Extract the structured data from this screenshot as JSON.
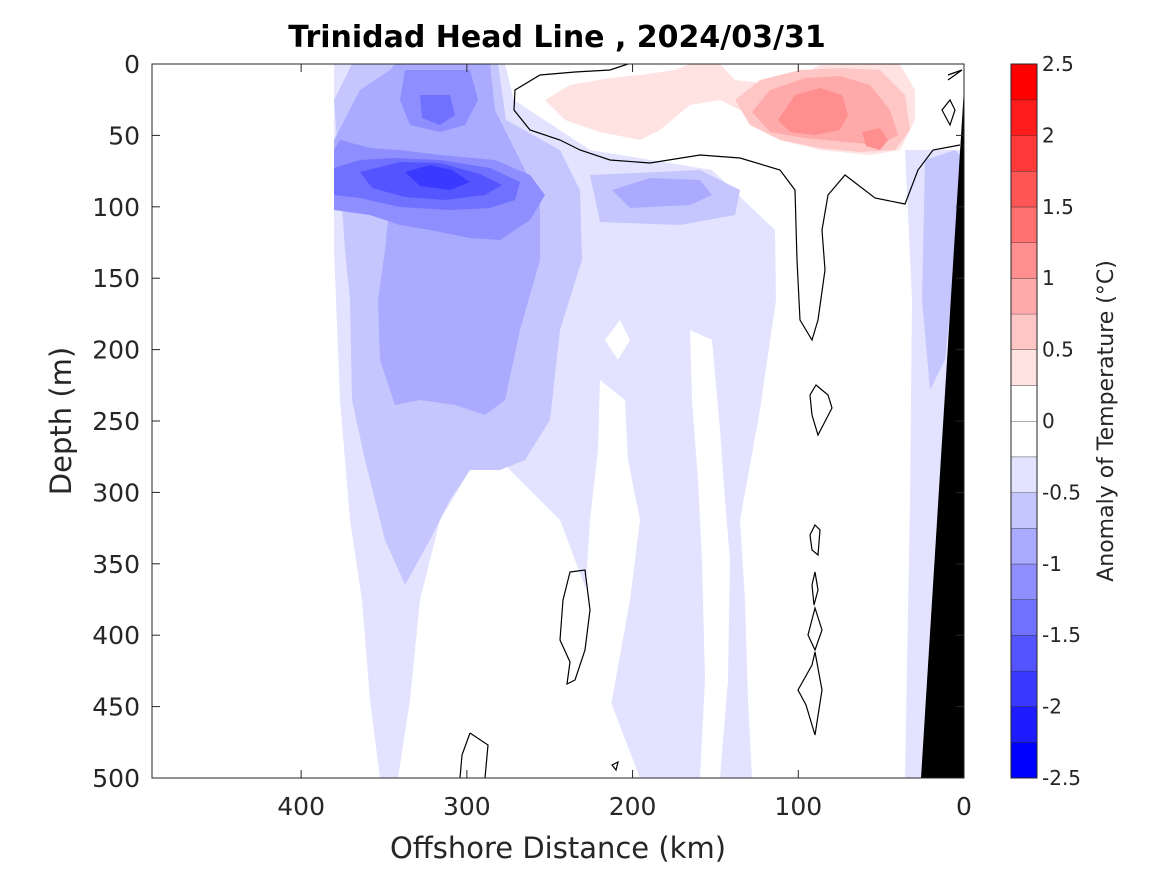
{
  "chart_data": {
    "type": "heatmap",
    "subtype": "filled-contour section",
    "title": "Trinidad Head Line , 2024/03/31",
    "xlabel": "Offshore Distance (km)",
    "ylabel": "Depth (m)",
    "xlim": [
      490,
      0
    ],
    "ylim": [
      0,
      500
    ],
    "x_reversed": true,
    "y_reversed": true,
    "x_ticks": [
      400,
      300,
      200,
      100,
      0
    ],
    "y_ticks": [
      0,
      50,
      100,
      150,
      200,
      250,
      300,
      350,
      400,
      450,
      500
    ],
    "colorbar": {
      "label": "Anomaly of Temperature (°C)",
      "min": -2.5,
      "max": 2.5,
      "step": 0.25,
      "ticks": [
        2.5,
        2,
        1.5,
        1,
        0.5,
        0,
        -0.5,
        -1,
        -1.5,
        -2,
        -2.5
      ],
      "colormap": "blue-white-red (diverging)"
    },
    "regions": [
      {
        "name": "no-data",
        "x_range": [
          490,
          380
        ],
        "depth_range": [
          0,
          500
        ],
        "value": null
      },
      {
        "name": "surface warm core near shelf",
        "x_center": 80,
        "depth_center": 40,
        "value": 1.1
      },
      {
        "name": "surface warm band offshore",
        "x_range": [
          240,
          140
        ],
        "depth_range": [
          0,
          60
        ],
        "value": 0.4
      },
      {
        "name": "subsurface cold core",
        "x_center": 320,
        "depth_center": 82,
        "value": -2.0
      },
      {
        "name": "cold patch near surface",
        "x_center": 320,
        "depth_center": 30,
        "value": -1.3
      },
      {
        "name": "cold tongue at 100 m",
        "x_center": 180,
        "depth_center": 90,
        "value": -0.9
      },
      {
        "name": "mid-depth cold body",
        "x_center": 300,
        "depth_center": 190,
        "value": -0.9
      },
      {
        "name": "nearshore cold strip",
        "x_center": 20,
        "depth_center": 180,
        "value": -0.6
      }
    ],
    "bathymetry": {
      "color": "#000000",
      "shelf_break_km_at_500m": 28
    }
  },
  "colors": {
    "level_-2.5": "#0000ff",
    "level_-2.25": "#1c1cff",
    "level_-2": "#3939ff",
    "level_-1.75": "#5555ff",
    "level_-1.5": "#7171ff",
    "level_-1.25": "#8e8eff",
    "level_-1": "#aaaaff",
    "level_-0.75": "#c6c6ff",
    "level_-0.5": "#e3e3ff",
    "level_-0.25": "#ffffff",
    "level_0": "#ffffff",
    "level_0.25": "#ffffff",
    "level_0.5": "#ffe3e3",
    "level_0.75": "#ffc6c6",
    "level_1": "#ffaaaa",
    "level_1.25": "#ff8e8e",
    "level_1.5": "#ff7171",
    "level_1.75": "#ff5555",
    "level_2": "#ff3939",
    "level_2.25": "#ff1c1c",
    "level_2.5": "#ff0000"
  }
}
